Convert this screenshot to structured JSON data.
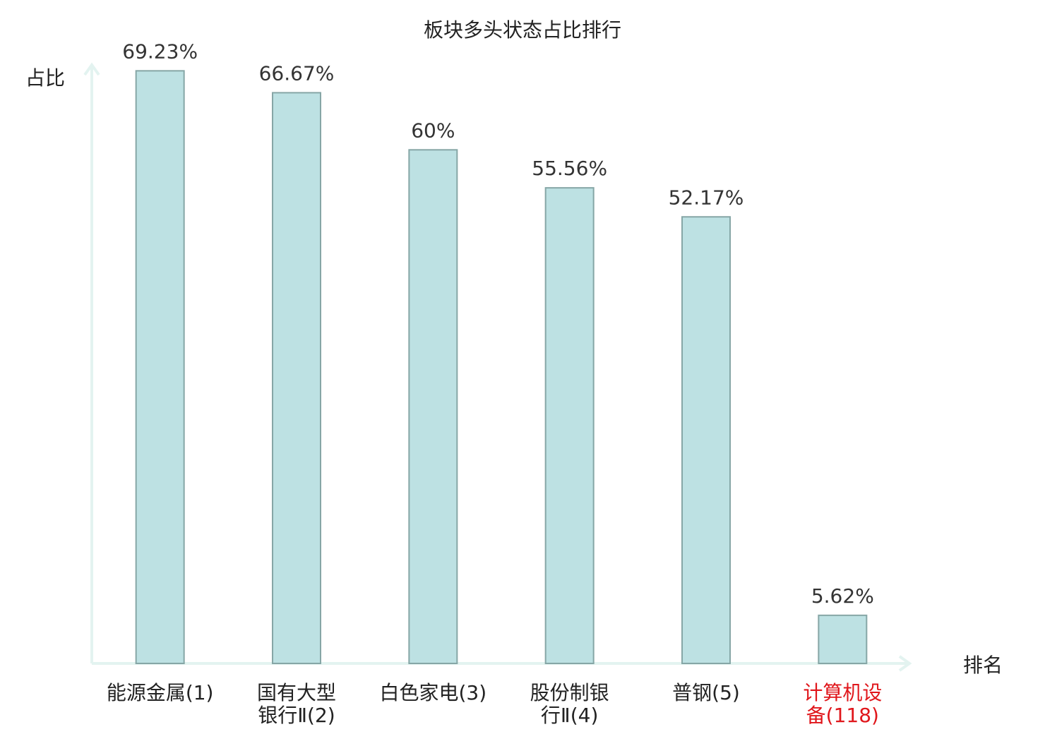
{
  "chart_data": {
    "type": "bar",
    "title": "板块多头状态占比排行",
    "y_label": "占比",
    "x_label": "排名",
    "categories": [
      "能源金属(1)",
      "国有大型\n银行Ⅱ(2)",
      "白色家电(3)",
      "股份制银\n行Ⅱ(4)",
      "普钢(5)",
      "计算机设\n备(118)"
    ],
    "category_colors": [
      "#222222",
      "#222222",
      "#222222",
      "#222222",
      "#222222",
      "#e0161b"
    ],
    "values": [
      69.23,
      66.67,
      60,
      55.56,
      52.17,
      5.62
    ],
    "value_labels": [
      "69.23%",
      "66.67%",
      "60%",
      "55.56%",
      "52.17%",
      "5.62%"
    ],
    "color": "#bde1e3",
    "edge_color": "#86a6a6",
    "ylim": [
      0,
      70
    ]
  }
}
